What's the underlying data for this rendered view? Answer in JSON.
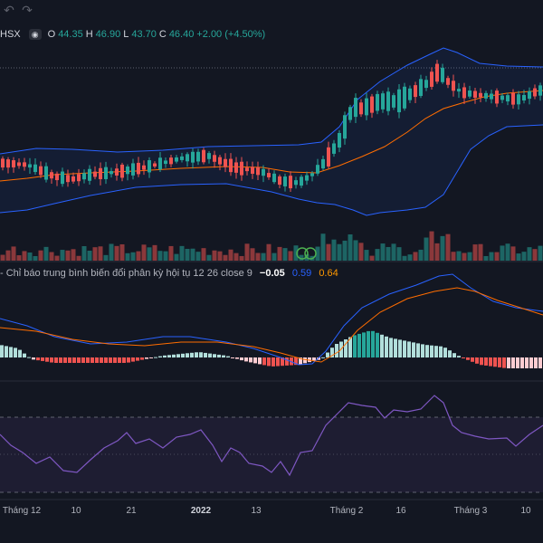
{
  "toolbar": {
    "undo_icon": "undo-icon",
    "redo_icon": "redo-icon"
  },
  "legend": {
    "symbol": "HSX",
    "open_label": "O",
    "open": "44.35",
    "high_label": "H",
    "high": "46.90",
    "low_label": "L",
    "low": "43.70",
    "close_label": "C",
    "close": "46.40",
    "change": "+2.00 (+4.50%)"
  },
  "macd": {
    "title": "- Chỉ báo trung bình biến đổi phân kỳ hội tụ 12 26 close 9",
    "hist_value": "−0.05",
    "macd_value": "0.59",
    "signal_value": "0.64"
  },
  "colors": {
    "background": "#131722",
    "up": "#26a69a",
    "down": "#ef5350",
    "band": "#2962ff",
    "basis": "#ff6d00",
    "macd_line": "#2962ff",
    "signal_line": "#ff6d00",
    "rsi_line": "#7e57c2",
    "rsi_band": "#7e57c2"
  },
  "x_axis": {
    "labels": [
      "Tháng 12",
      "10",
      "21",
      "2022",
      "13",
      "Tháng 2",
      "16",
      "Tháng 3",
      "10"
    ]
  }
}
